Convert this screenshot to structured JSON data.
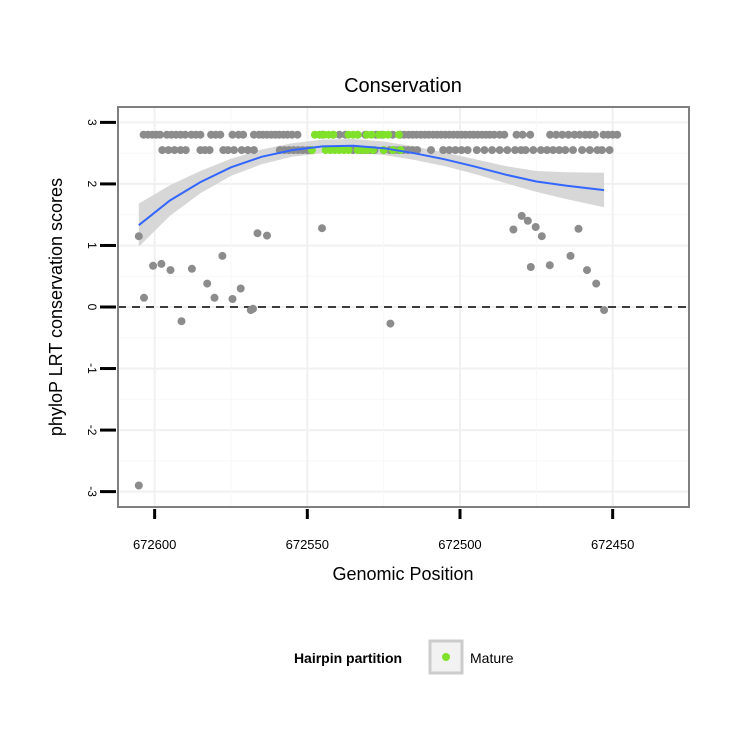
{
  "chart_data": {
    "type": "scatter",
    "title": "Conservation",
    "xlabel": "Genomic Position",
    "ylabel": "phyloP LRT conservation scores",
    "x_reversed": true,
    "xlim": [
      672425,
      672612
    ],
    "ylim": [
      -3.25,
      3.25
    ],
    "xticks": [
      672600,
      672550,
      672500,
      672450
    ],
    "xtick_labels": [
      "672600",
      "672550",
      "672500",
      "672450"
    ],
    "yticks": [
      -3,
      -2,
      -1,
      0,
      1,
      2,
      3
    ],
    "ytick_labels": [
      "-3",
      "-2",
      "-1",
      "0",
      "1",
      "2",
      "3"
    ],
    "grid": true,
    "hline": {
      "y": 0,
      "style": "dashed"
    },
    "colors": {
      "default": "#8c8c8c",
      "mature": "#7fe12a",
      "fit": "#3366ff",
      "band": "#d3d3d3",
      "panel_border": "#7f7f7f"
    },
    "series": [
      {
        "name": "",
        "color": "#8c8c8c",
        "points": [
          [
            672605.2,
            -2.9
          ],
          [
            672605.2,
            1.15
          ],
          [
            672603.5,
            0.15
          ],
          [
            672600.5,
            0.67
          ],
          [
            672597.8,
            0.7
          ],
          [
            672594.8,
            0.6
          ],
          [
            672591.2,
            -0.23
          ],
          [
            672587.8,
            0.62
          ],
          [
            672582.8,
            0.38
          ],
          [
            672580.4,
            0.15
          ],
          [
            672577.8,
            0.83
          ],
          [
            672574.5,
            0.13
          ],
          [
            672571.8,
            0.3
          ],
          [
            672568.5,
            -0.05
          ],
          [
            672567.8,
            -0.03
          ],
          [
            672566.3,
            1.2
          ],
          [
            672563.2,
            1.16
          ],
          [
            672545.2,
            1.28
          ],
          [
            672522.8,
            -0.27
          ],
          [
            672482.5,
            1.26
          ],
          [
            672479.8,
            1.48
          ],
          [
            672477.8,
            1.4
          ],
          [
            672476.8,
            0.65
          ],
          [
            672475.2,
            1.3
          ],
          [
            672473.2,
            1.15
          ],
          [
            672470.6,
            0.68
          ],
          [
            672463.8,
            0.83
          ],
          [
            672461.2,
            1.27
          ],
          [
            672458.4,
            0.6
          ],
          [
            672455.4,
            0.38
          ],
          [
            672452.8,
            -0.05
          ],
          [
            672603.6,
            2.8
          ],
          [
            672602.2,
            2.8
          ],
          [
            672600.8,
            2.8
          ],
          [
            672599.5,
            2.8
          ],
          [
            672598.2,
            2.8
          ],
          [
            672596.0,
            2.8
          ],
          [
            672594.5,
            2.8
          ],
          [
            672593.0,
            2.8
          ],
          [
            672591.5,
            2.8
          ],
          [
            672590.0,
            2.8
          ],
          [
            672588.0,
            2.8
          ],
          [
            672586.5,
            2.8
          ],
          [
            672585.0,
            2.8
          ],
          [
            672581.5,
            2.8
          ],
          [
            672580.0,
            2.8
          ],
          [
            672578.5,
            2.8
          ],
          [
            672574.5,
            2.8
          ],
          [
            672572.5,
            2.8
          ],
          [
            672571.0,
            2.8
          ],
          [
            672567.5,
            2.8
          ],
          [
            672565.8,
            2.8
          ],
          [
            672564.5,
            2.8
          ],
          [
            672563.2,
            2.8
          ],
          [
            672561.8,
            2.8
          ],
          [
            672560.5,
            2.8
          ],
          [
            672559.2,
            2.8
          ],
          [
            672557.8,
            2.8
          ],
          [
            672556.5,
            2.8
          ],
          [
            672555.0,
            2.8
          ],
          [
            672553.2,
            2.8
          ],
          [
            672545.0,
            2.8
          ],
          [
            672541.5,
            2.8
          ],
          [
            672539.5,
            2.8
          ],
          [
            672537.5,
            2.8
          ],
          [
            672533.5,
            2.8
          ],
          [
            672531.0,
            2.8
          ],
          [
            672527.5,
            2.8
          ],
          [
            672525.5,
            2.8
          ],
          [
            672522.0,
            2.8
          ],
          [
            672519.5,
            2.8
          ],
          [
            672518.2,
            2.8
          ],
          [
            672516.8,
            2.8
          ],
          [
            672515.5,
            2.8
          ],
          [
            672514.2,
            2.8
          ],
          [
            672512.8,
            2.8
          ],
          [
            672511.5,
            2.8
          ],
          [
            672510.2,
            2.8
          ],
          [
            672508.8,
            2.8
          ],
          [
            672507.5,
            2.8
          ],
          [
            672506.2,
            2.8
          ],
          [
            672504.8,
            2.8
          ],
          [
            672503.5,
            2.8
          ],
          [
            672502.2,
            2.8
          ],
          [
            672500.8,
            2.8
          ],
          [
            672499.5,
            2.8
          ],
          [
            672498.2,
            2.8
          ],
          [
            672496.8,
            2.8
          ],
          [
            672495.5,
            2.8
          ],
          [
            672494.2,
            2.8
          ],
          [
            672492.8,
            2.8
          ],
          [
            672491.5,
            2.8
          ],
          [
            672490.2,
            2.8
          ],
          [
            672488.8,
            2.8
          ],
          [
            672487.0,
            2.8
          ],
          [
            672485.5,
            2.8
          ],
          [
            672481.5,
            2.8
          ],
          [
            672479.5,
            2.8
          ],
          [
            672477.0,
            2.8
          ],
          [
            672470.5,
            2.8
          ],
          [
            672468.5,
            2.8
          ],
          [
            672466.5,
            2.8
          ],
          [
            672464.5,
            2.8
          ],
          [
            672462.5,
            2.8
          ],
          [
            672460.8,
            2.8
          ],
          [
            672459.0,
            2.8
          ],
          [
            672457.5,
            2.8
          ],
          [
            672455.8,
            2.8
          ],
          [
            672453.0,
            2.8
          ],
          [
            672451.5,
            2.8
          ],
          [
            672450.0,
            2.8
          ],
          [
            672448.5,
            2.8
          ],
          [
            672597.5,
            2.55
          ],
          [
            672595.5,
            2.55
          ],
          [
            672593.5,
            2.55
          ],
          [
            672591.5,
            2.55
          ],
          [
            672589.8,
            2.55
          ],
          [
            672585.0,
            2.55
          ],
          [
            672583.5,
            2.55
          ],
          [
            672582.0,
            2.55
          ],
          [
            672577.5,
            2.55
          ],
          [
            672576.0,
            2.55
          ],
          [
            672574.0,
            2.55
          ],
          [
            672571.5,
            2.55
          ],
          [
            672569.5,
            2.55
          ],
          [
            672567.5,
            2.55
          ],
          [
            672559.0,
            2.55
          ],
          [
            672557.5,
            2.55
          ],
          [
            672556.0,
            2.55
          ],
          [
            672554.5,
            2.55
          ],
          [
            672553.0,
            2.55
          ],
          [
            672551.5,
            2.55
          ],
          [
            672550.0,
            2.55
          ],
          [
            672549.0,
            2.55
          ],
          [
            672535.0,
            2.55
          ],
          [
            672532.5,
            2.55
          ],
          [
            672531.0,
            2.55
          ],
          [
            672529.5,
            2.55
          ],
          [
            672528.0,
            2.55
          ],
          [
            672525.0,
            2.55
          ],
          [
            672523.0,
            2.55
          ],
          [
            672521.5,
            2.55
          ],
          [
            672520.0,
            2.55
          ],
          [
            672518.5,
            2.55
          ],
          [
            672517.0,
            2.55
          ],
          [
            672515.5,
            2.55
          ],
          [
            672514.0,
            2.55
          ],
          [
            672509.5,
            2.55
          ],
          [
            672505.5,
            2.55
          ],
          [
            672503.5,
            2.55
          ],
          [
            672501.5,
            2.55
          ],
          [
            672499.5,
            2.55
          ],
          [
            672497.5,
            2.55
          ],
          [
            672494.5,
            2.55
          ],
          [
            672492.0,
            2.55
          ],
          [
            672489.5,
            2.55
          ],
          [
            672487.0,
            2.55
          ],
          [
            672484.5,
            2.55
          ],
          [
            672482.0,
            2.55
          ],
          [
            672480.0,
            2.55
          ],
          [
            672478.5,
            2.55
          ],
          [
            672476.0,
            2.55
          ],
          [
            672473.5,
            2.55
          ],
          [
            672471.5,
            2.55
          ],
          [
            672469.5,
            2.55
          ],
          [
            672467.5,
            2.55
          ],
          [
            672465.5,
            2.55
          ],
          [
            672463.0,
            2.55
          ],
          [
            672460.0,
            2.55
          ],
          [
            672457.5,
            2.55
          ],
          [
            672455.0,
            2.55
          ],
          [
            672453.5,
            2.55
          ],
          [
            672451.0,
            2.55
          ]
        ]
      },
      {
        "name": "Mature",
        "color": "#7fe12a",
        "points": [
          [
            672547.5,
            2.8
          ],
          [
            672546.0,
            2.8
          ],
          [
            672544.5,
            2.8
          ],
          [
            672543.0,
            2.8
          ],
          [
            672541.5,
            2.8
          ],
          [
            672536.5,
            2.8
          ],
          [
            672535.0,
            2.8
          ],
          [
            672533.5,
            2.8
          ],
          [
            672530.5,
            2.8
          ],
          [
            672529.0,
            2.8
          ],
          [
            672526.5,
            2.8
          ],
          [
            672525.0,
            2.8
          ],
          [
            672523.5,
            2.8
          ],
          [
            672520.0,
            2.8
          ],
          [
            672548.5,
            2.55
          ],
          [
            672544.0,
            2.55
          ],
          [
            672542.5,
            2.55
          ],
          [
            672541.0,
            2.55
          ],
          [
            672539.5,
            2.55
          ],
          [
            672538.0,
            2.55
          ],
          [
            672536.5,
            2.55
          ],
          [
            672533.5,
            2.55
          ],
          [
            672532.0,
            2.55
          ],
          [
            672530.5,
            2.55
          ],
          [
            672528.5,
            2.55
          ],
          [
            672525.0,
            2.55
          ],
          [
            672522.0,
            2.55
          ],
          [
            672519.5,
            2.55
          ]
        ]
      }
    ],
    "smooth": {
      "method": "quadratic fit with confidence band",
      "points": [
        {
          "x": 672605.2,
          "y": 1.33,
          "lo": 0.98,
          "hi": 1.68
        },
        {
          "x": 672595.0,
          "y": 1.73,
          "lo": 1.48,
          "hi": 1.98
        },
        {
          "x": 672585.0,
          "y": 2.03,
          "lo": 1.85,
          "hi": 2.21
        },
        {
          "x": 672575.0,
          "y": 2.27,
          "lo": 2.13,
          "hi": 2.41
        },
        {
          "x": 672565.0,
          "y": 2.44,
          "lo": 2.32,
          "hi": 2.56
        },
        {
          "x": 672555.0,
          "y": 2.55,
          "lo": 2.44,
          "hi": 2.66
        },
        {
          "x": 672545.0,
          "y": 2.61,
          "lo": 2.5,
          "hi": 2.72
        },
        {
          "x": 672535.0,
          "y": 2.62,
          "lo": 2.51,
          "hi": 2.73
        },
        {
          "x": 672525.0,
          "y": 2.58,
          "lo": 2.47,
          "hi": 2.69
        },
        {
          "x": 672515.0,
          "y": 2.5,
          "lo": 2.39,
          "hi": 2.61
        },
        {
          "x": 672505.0,
          "y": 2.4,
          "lo": 2.29,
          "hi": 2.51
        },
        {
          "x": 672495.0,
          "y": 2.28,
          "lo": 2.16,
          "hi": 2.4
        },
        {
          "x": 672485.0,
          "y": 2.15,
          "lo": 2.01,
          "hi": 2.29
        },
        {
          "x": 672475.0,
          "y": 2.04,
          "lo": 1.87,
          "hi": 2.21
        },
        {
          "x": 672465.0,
          "y": 1.97,
          "lo": 1.75,
          "hi": 2.19
        },
        {
          "x": 672452.8,
          "y": 1.9,
          "lo": 1.62,
          "hi": 2.18
        }
      ]
    },
    "legend": {
      "title": "Hairpin partition",
      "placement": "bottom",
      "entries": [
        {
          "label": "Mature",
          "color": "#7fe12a"
        }
      ]
    }
  }
}
